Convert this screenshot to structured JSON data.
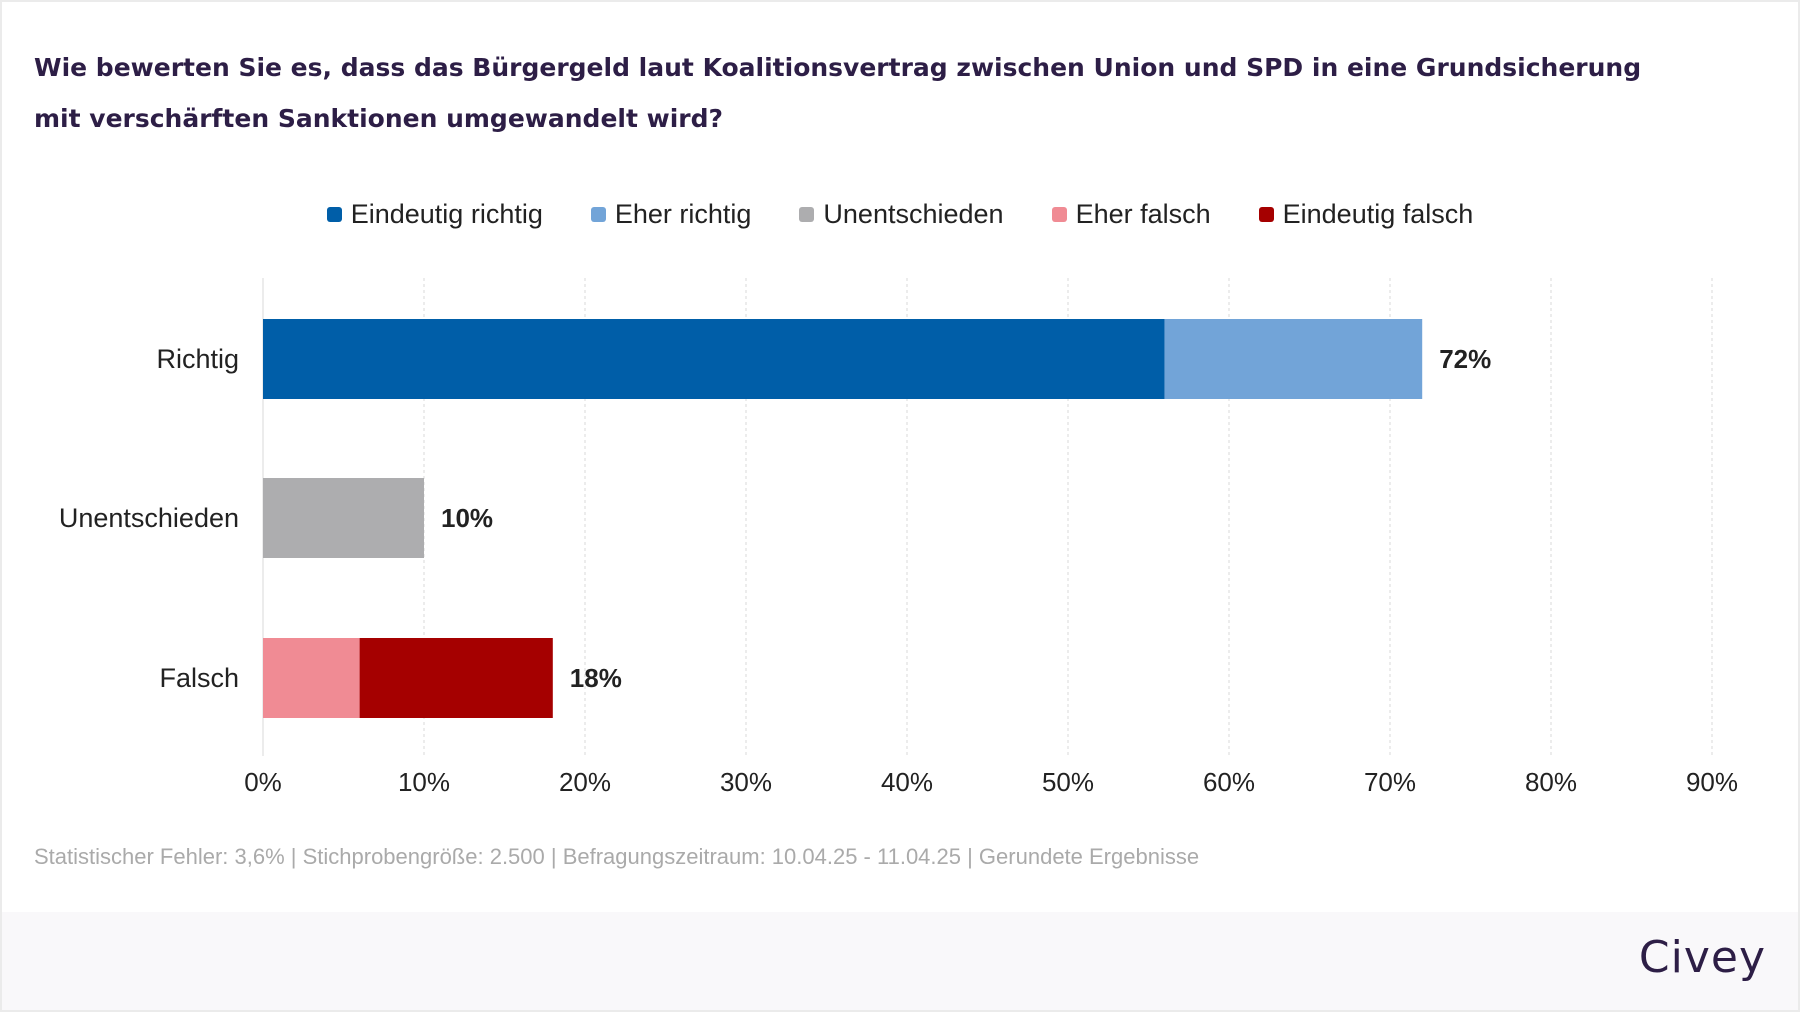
{
  "question": "Wie bewerten Sie es, dass das Bürgergeld laut Koalitionsvertrag zwischen Union und SPD in eine Grundsicherung mit verschärften Sanktionen umgewandelt wird?",
  "footnote": "Statistischer Fehler: 3,6% | Stichprobengröße: 2.500 | Befragungszeitraum: 10.04.25 - 11.04.25 | Gerundete Ergebnisse",
  "brand": "Civey",
  "chart_data": {
    "type": "bar",
    "orientation": "horizontal",
    "stacked": true,
    "categories": [
      "Richtig",
      "Unentschieden",
      "Falsch"
    ],
    "series": [
      {
        "name": "Eindeutig richtig",
        "color": "#005ea8",
        "values": [
          56,
          0,
          0
        ]
      },
      {
        "name": "Eher richtig",
        "color": "#72a4d8",
        "values": [
          16,
          0,
          0
        ]
      },
      {
        "name": "Unentschieden",
        "color": "#adadaf",
        "values": [
          0,
          10,
          0
        ]
      },
      {
        "name": "Eher falsch",
        "color": "#f08b94",
        "values": [
          0,
          0,
          6
        ]
      },
      {
        "name": "Eindeutig falsch",
        "color": "#a50000",
        "values": [
          0,
          0,
          12
        ]
      }
    ],
    "series_order_per_category": [
      [
        0,
        1
      ],
      [
        2
      ],
      [
        3,
        4
      ]
    ],
    "totals": [
      "72%",
      "10%",
      "18%"
    ],
    "xlim": [
      0,
      90
    ],
    "xticks": [
      0,
      10,
      20,
      30,
      40,
      50,
      60,
      70,
      80,
      90
    ],
    "xtick_labels": [
      "0%",
      "10%",
      "20%",
      "30%",
      "40%",
      "50%",
      "60%",
      "70%",
      "80%",
      "90%"
    ],
    "grid": "vertical dashed",
    "legend_position": "top-center"
  }
}
